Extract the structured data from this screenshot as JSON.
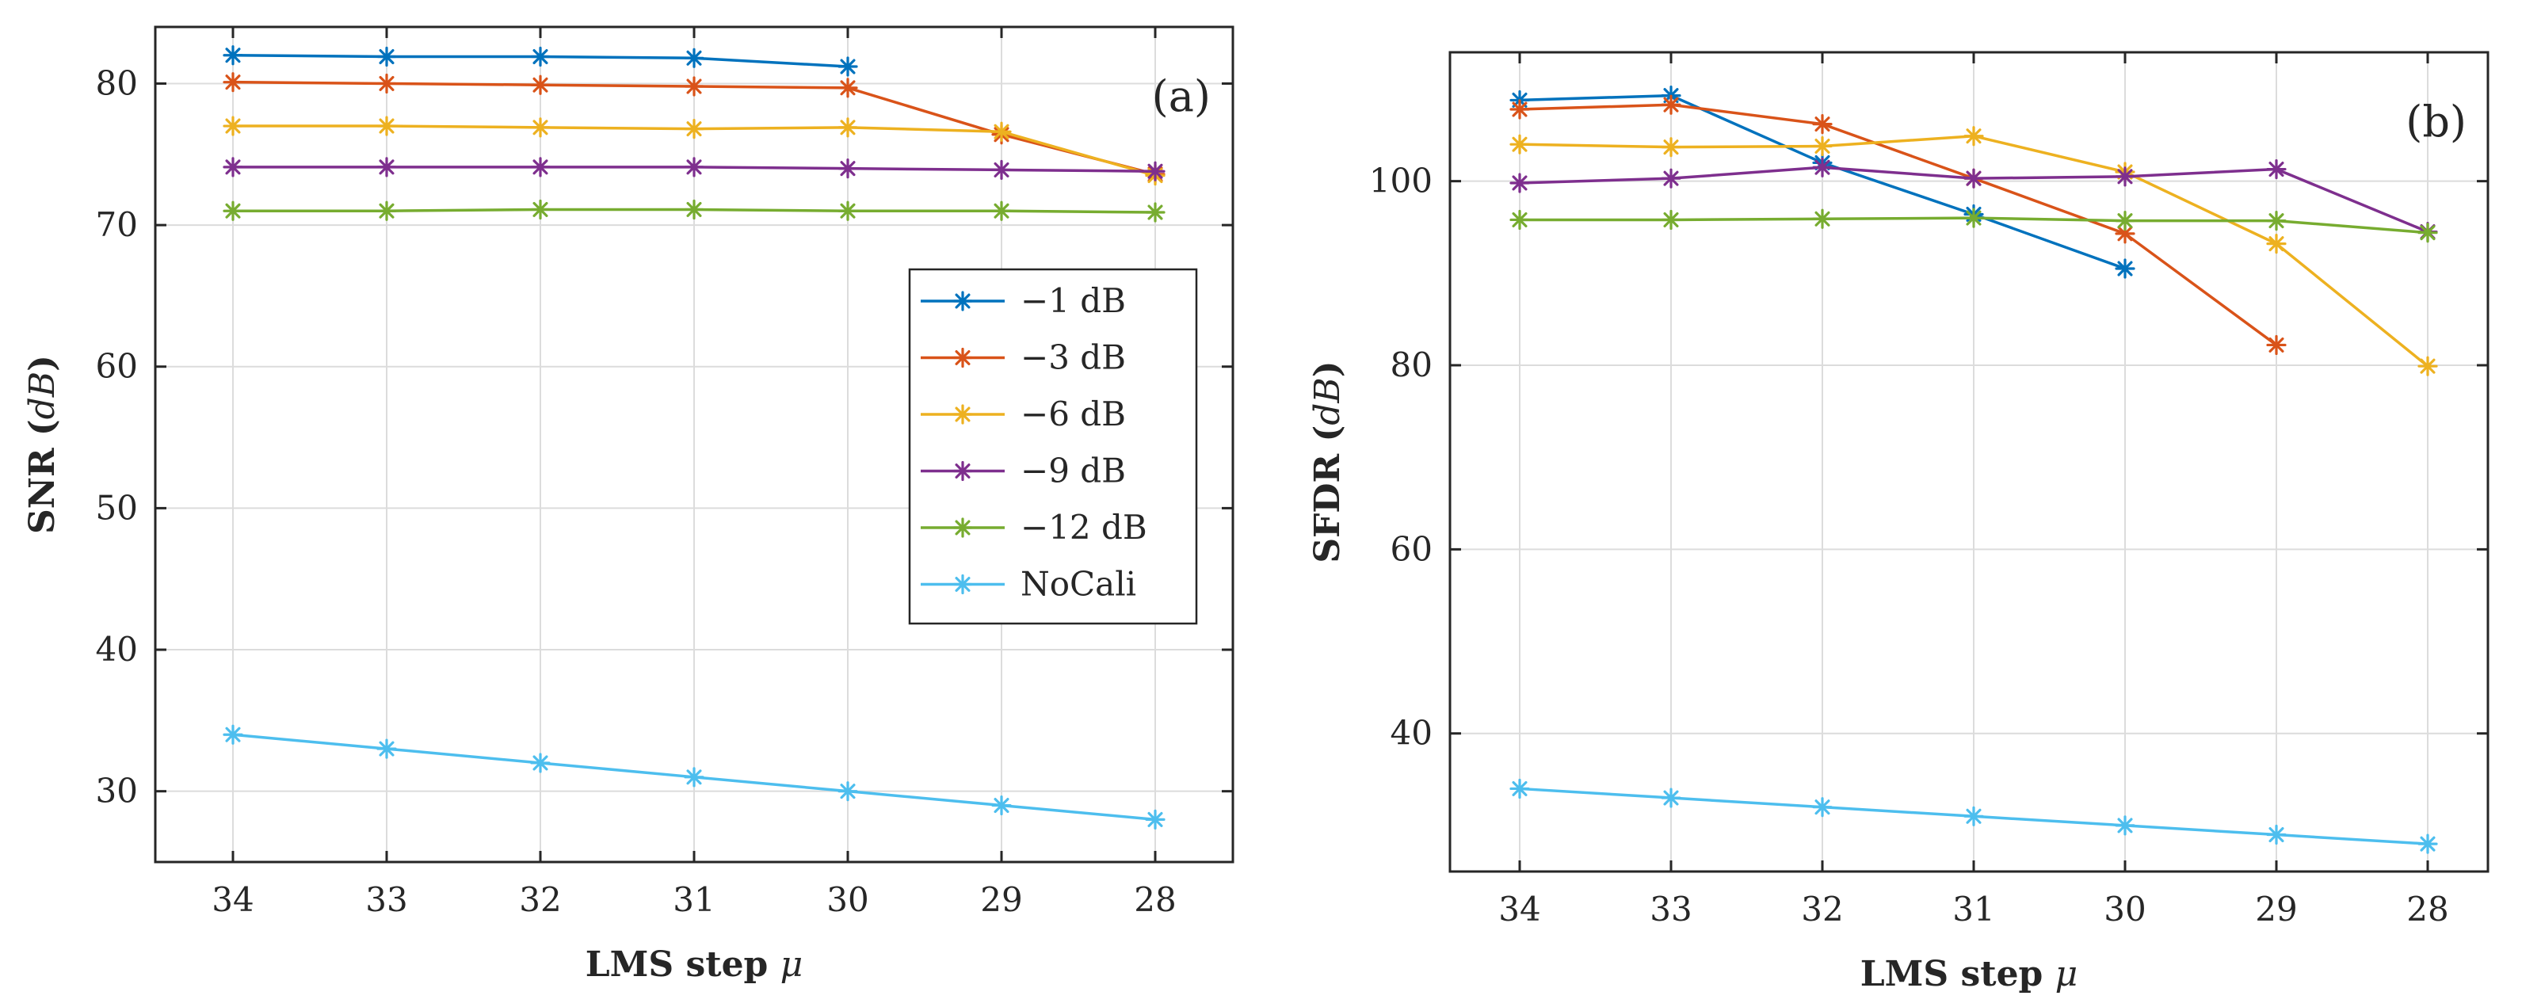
{
  "chart_data": [
    {
      "type": "line",
      "panel_label": "(a)",
      "title": "",
      "xlabel": "LMS step μ",
      "ylabel": "SNR (dB)",
      "ylabel_prefix": "SNR",
      "ylabel_unit": "dB",
      "xlabel_prefix": "LMS step",
      "xlabel_symbol": "μ",
      "categories": [
        "34",
        "33",
        "32",
        "31",
        "30",
        "29",
        "28"
      ],
      "ylim": [
        25,
        84
      ],
      "yticks": [
        30,
        40,
        50,
        60,
        70,
        80
      ],
      "grid": true,
      "legend_position": "center-right",
      "series": [
        {
          "name": "−1 dB",
          "color": "#0072BD",
          "values": [
            82.0,
            81.9,
            81.9,
            81.8,
            81.2,
            null,
            null
          ]
        },
        {
          "name": "−3 dB",
          "color": "#D95319",
          "values": [
            80.1,
            80.0,
            79.9,
            79.8,
            79.7,
            76.4,
            73.6
          ]
        },
        {
          "name": "−6 dB",
          "color": "#EDB120",
          "values": [
            77.0,
            77.0,
            76.9,
            76.8,
            76.9,
            76.6,
            73.5
          ]
        },
        {
          "name": "−9 dB",
          "color": "#7E2F8E",
          "values": [
            74.1,
            74.1,
            74.1,
            74.1,
            74.0,
            73.9,
            73.8
          ]
        },
        {
          "name": "−12 dB",
          "color": "#77AC30",
          "values": [
            71.0,
            71.0,
            71.1,
            71.1,
            71.0,
            71.0,
            70.9
          ]
        },
        {
          "name": "NoCali",
          "color": "#4DBEEE",
          "values": [
            34.0,
            33.0,
            32.0,
            31.0,
            30.0,
            29.0,
            28.0
          ]
        }
      ]
    },
    {
      "type": "line",
      "panel_label": "(b)",
      "title": "",
      "xlabel": "LMS step μ",
      "ylabel": "SFDR (dB)",
      "ylabel_prefix": "SFDR",
      "ylabel_unit": "dB",
      "xlabel_prefix": "LMS step",
      "xlabel_symbol": "μ",
      "categories": [
        "34",
        "33",
        "32",
        "31",
        "30",
        "29",
        "28"
      ],
      "ylim": [
        25,
        114
      ],
      "yticks": [
        40,
        60,
        80,
        100
      ],
      "grid": true,
      "series": [
        {
          "name": "−1 dB",
          "color": "#0072BD",
          "values": [
            108.8,
            109.3,
            102.0,
            96.4,
            90.5,
            null,
            null
          ]
        },
        {
          "name": "−3 dB",
          "color": "#D95319",
          "values": [
            107.8,
            108.3,
            106.2,
            100.3,
            94.3,
            82.2,
            null
          ]
        },
        {
          "name": "−6 dB",
          "color": "#EDB120",
          "values": [
            104.0,
            103.7,
            103.8,
            104.9,
            101.0,
            93.2,
            79.9
          ]
        },
        {
          "name": "−9 dB",
          "color": "#7E2F8E",
          "values": [
            99.8,
            100.3,
            101.5,
            100.3,
            100.5,
            101.3,
            94.5
          ]
        },
        {
          "name": "−12 dB",
          "color": "#77AC30",
          "values": [
            95.8,
            95.8,
            95.9,
            96.0,
            95.7,
            95.7,
            94.4
          ]
        },
        {
          "name": "NoCali",
          "color": "#4DBEEE",
          "values": [
            34.0,
            33.0,
            32.0,
            31.0,
            30.0,
            29.0,
            28.0
          ]
        }
      ]
    }
  ]
}
